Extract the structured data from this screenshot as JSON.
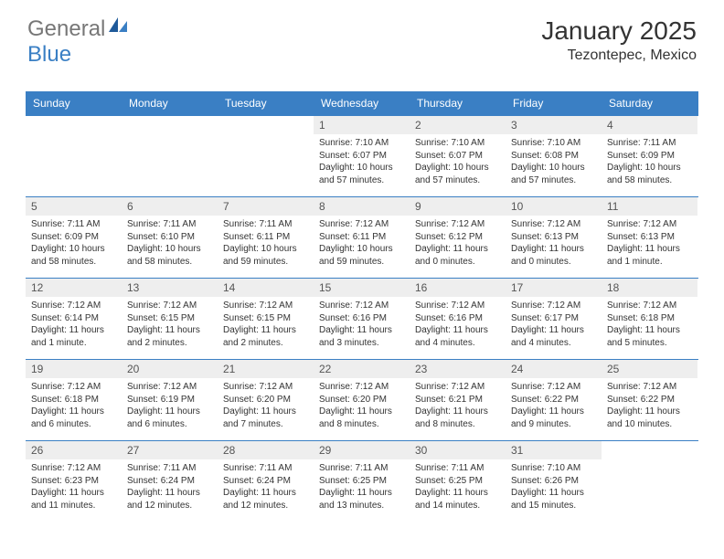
{
  "brand": {
    "part1": "General",
    "part2": "Blue",
    "text_color_gray": "#777777",
    "text_color_blue": "#3a7fc4"
  },
  "title": "January 2025",
  "location": "Tezontepec, Mexico",
  "header_bg": "#3a7fc4",
  "header_text_color": "#ffffff",
  "day_bg": "#eeeeee",
  "border_color": "#3a7fc4",
  "days_of_week": [
    "Sunday",
    "Monday",
    "Tuesday",
    "Wednesday",
    "Thursday",
    "Friday",
    "Saturday"
  ],
  "weeks": [
    [
      {
        "n": "",
        "sunrise": "",
        "sunset": "",
        "daylight": ""
      },
      {
        "n": "",
        "sunrise": "",
        "sunset": "",
        "daylight": ""
      },
      {
        "n": "",
        "sunrise": "",
        "sunset": "",
        "daylight": ""
      },
      {
        "n": "1",
        "sunrise": "Sunrise: 7:10 AM",
        "sunset": "Sunset: 6:07 PM",
        "daylight": "Daylight: 10 hours and 57 minutes."
      },
      {
        "n": "2",
        "sunrise": "Sunrise: 7:10 AM",
        "sunset": "Sunset: 6:07 PM",
        "daylight": "Daylight: 10 hours and 57 minutes."
      },
      {
        "n": "3",
        "sunrise": "Sunrise: 7:10 AM",
        "sunset": "Sunset: 6:08 PM",
        "daylight": "Daylight: 10 hours and 57 minutes."
      },
      {
        "n": "4",
        "sunrise": "Sunrise: 7:11 AM",
        "sunset": "Sunset: 6:09 PM",
        "daylight": "Daylight: 10 hours and 58 minutes."
      }
    ],
    [
      {
        "n": "5",
        "sunrise": "Sunrise: 7:11 AM",
        "sunset": "Sunset: 6:09 PM",
        "daylight": "Daylight: 10 hours and 58 minutes."
      },
      {
        "n": "6",
        "sunrise": "Sunrise: 7:11 AM",
        "sunset": "Sunset: 6:10 PM",
        "daylight": "Daylight: 10 hours and 58 minutes."
      },
      {
        "n": "7",
        "sunrise": "Sunrise: 7:11 AM",
        "sunset": "Sunset: 6:11 PM",
        "daylight": "Daylight: 10 hours and 59 minutes."
      },
      {
        "n": "8",
        "sunrise": "Sunrise: 7:12 AM",
        "sunset": "Sunset: 6:11 PM",
        "daylight": "Daylight: 10 hours and 59 minutes."
      },
      {
        "n": "9",
        "sunrise": "Sunrise: 7:12 AM",
        "sunset": "Sunset: 6:12 PM",
        "daylight": "Daylight: 11 hours and 0 minutes."
      },
      {
        "n": "10",
        "sunrise": "Sunrise: 7:12 AM",
        "sunset": "Sunset: 6:13 PM",
        "daylight": "Daylight: 11 hours and 0 minutes."
      },
      {
        "n": "11",
        "sunrise": "Sunrise: 7:12 AM",
        "sunset": "Sunset: 6:13 PM",
        "daylight": "Daylight: 11 hours and 1 minute."
      }
    ],
    [
      {
        "n": "12",
        "sunrise": "Sunrise: 7:12 AM",
        "sunset": "Sunset: 6:14 PM",
        "daylight": "Daylight: 11 hours and 1 minute."
      },
      {
        "n": "13",
        "sunrise": "Sunrise: 7:12 AM",
        "sunset": "Sunset: 6:15 PM",
        "daylight": "Daylight: 11 hours and 2 minutes."
      },
      {
        "n": "14",
        "sunrise": "Sunrise: 7:12 AM",
        "sunset": "Sunset: 6:15 PM",
        "daylight": "Daylight: 11 hours and 2 minutes."
      },
      {
        "n": "15",
        "sunrise": "Sunrise: 7:12 AM",
        "sunset": "Sunset: 6:16 PM",
        "daylight": "Daylight: 11 hours and 3 minutes."
      },
      {
        "n": "16",
        "sunrise": "Sunrise: 7:12 AM",
        "sunset": "Sunset: 6:16 PM",
        "daylight": "Daylight: 11 hours and 4 minutes."
      },
      {
        "n": "17",
        "sunrise": "Sunrise: 7:12 AM",
        "sunset": "Sunset: 6:17 PM",
        "daylight": "Daylight: 11 hours and 4 minutes."
      },
      {
        "n": "18",
        "sunrise": "Sunrise: 7:12 AM",
        "sunset": "Sunset: 6:18 PM",
        "daylight": "Daylight: 11 hours and 5 minutes."
      }
    ],
    [
      {
        "n": "19",
        "sunrise": "Sunrise: 7:12 AM",
        "sunset": "Sunset: 6:18 PM",
        "daylight": "Daylight: 11 hours and 6 minutes."
      },
      {
        "n": "20",
        "sunrise": "Sunrise: 7:12 AM",
        "sunset": "Sunset: 6:19 PM",
        "daylight": "Daylight: 11 hours and 6 minutes."
      },
      {
        "n": "21",
        "sunrise": "Sunrise: 7:12 AM",
        "sunset": "Sunset: 6:20 PM",
        "daylight": "Daylight: 11 hours and 7 minutes."
      },
      {
        "n": "22",
        "sunrise": "Sunrise: 7:12 AM",
        "sunset": "Sunset: 6:20 PM",
        "daylight": "Daylight: 11 hours and 8 minutes."
      },
      {
        "n": "23",
        "sunrise": "Sunrise: 7:12 AM",
        "sunset": "Sunset: 6:21 PM",
        "daylight": "Daylight: 11 hours and 8 minutes."
      },
      {
        "n": "24",
        "sunrise": "Sunrise: 7:12 AM",
        "sunset": "Sunset: 6:22 PM",
        "daylight": "Daylight: 11 hours and 9 minutes."
      },
      {
        "n": "25",
        "sunrise": "Sunrise: 7:12 AM",
        "sunset": "Sunset: 6:22 PM",
        "daylight": "Daylight: 11 hours and 10 minutes."
      }
    ],
    [
      {
        "n": "26",
        "sunrise": "Sunrise: 7:12 AM",
        "sunset": "Sunset: 6:23 PM",
        "daylight": "Daylight: 11 hours and 11 minutes."
      },
      {
        "n": "27",
        "sunrise": "Sunrise: 7:11 AM",
        "sunset": "Sunset: 6:24 PM",
        "daylight": "Daylight: 11 hours and 12 minutes."
      },
      {
        "n": "28",
        "sunrise": "Sunrise: 7:11 AM",
        "sunset": "Sunset: 6:24 PM",
        "daylight": "Daylight: 11 hours and 12 minutes."
      },
      {
        "n": "29",
        "sunrise": "Sunrise: 7:11 AM",
        "sunset": "Sunset: 6:25 PM",
        "daylight": "Daylight: 11 hours and 13 minutes."
      },
      {
        "n": "30",
        "sunrise": "Sunrise: 7:11 AM",
        "sunset": "Sunset: 6:25 PM",
        "daylight": "Daylight: 11 hours and 14 minutes."
      },
      {
        "n": "31",
        "sunrise": "Sunrise: 7:10 AM",
        "sunset": "Sunset: 6:26 PM",
        "daylight": "Daylight: 11 hours and 15 minutes."
      },
      {
        "n": "",
        "sunrise": "",
        "sunset": "",
        "daylight": ""
      }
    ]
  ]
}
